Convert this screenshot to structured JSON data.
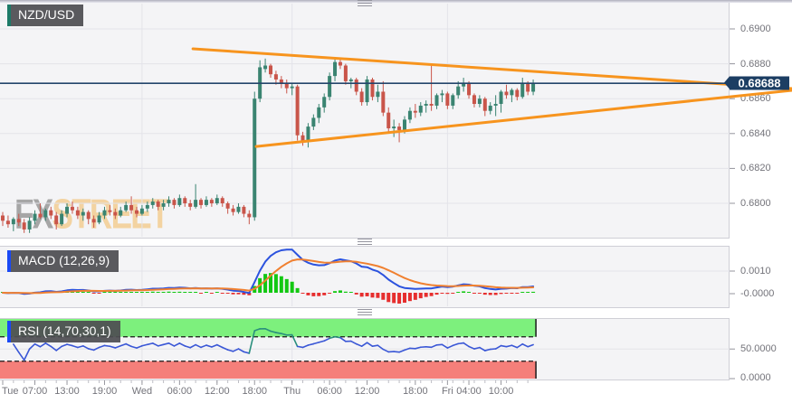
{
  "window_title": "NZD/USD price chart with MACD and RSI",
  "symbol_box": {
    "label": "NZD/USD",
    "accent_color": "#1d7a68"
  },
  "price_badge": {
    "label": "0.68688",
    "color": "#1c3e63"
  },
  "price_axis_labels": [
    "0.6900",
    "0.6880",
    "0.6860",
    "0.6840",
    "0.6820",
    "0.6800"
  ],
  "macd_box": {
    "label": "MACD (12,26,9)",
    "accent_color": "#1a49f5"
  },
  "macd_axis_labels": [
    "0.0010",
    "-0.0000"
  ],
  "rsi_box": {
    "label": "RSI (14,70,30,1)",
    "accent_color": "#1a49f5"
  },
  "rsi_axis_labels": [
    "50.0000",
    "0.0000"
  ],
  "watermark": {
    "part1": "FX",
    "part2": "STREET"
  },
  "colors": {
    "candle_up": "#3a8471",
    "candle_down": "#c9554a",
    "trendline": "#f7941e",
    "current_price_line": "#24456b",
    "macd_line": "#2b52de",
    "macd_signal": "#f08030",
    "hist_up": "#12c812",
    "hist_down": "#e62e2e",
    "rsi_line": "#3a57d6",
    "rsi_over": "#2a8f7d",
    "rsi_band_upper": "#7df07d",
    "rsi_band_lower": "#f57f7a",
    "threshold_line": "#1a1a1a",
    "gridline": "#e3e3e9"
  },
  "chart_data": {
    "type": "candlestick",
    "title": "NZD/USD",
    "timeframe_note": "intraday candles Tue through Fri",
    "price_base": 0.67,
    "pip": 0.0001,
    "y_ticks": [
      0.69,
      0.688,
      0.686,
      0.684,
      0.682,
      0.68
    ],
    "last_price": 0.68688,
    "ohlc_pips": [
      [
        93,
        95,
        87,
        90
      ],
      [
        90,
        93,
        86,
        88
      ],
      [
        88,
        92,
        84,
        91
      ],
      [
        91,
        94,
        87,
        89
      ],
      [
        89,
        91,
        83,
        85
      ],
      [
        85,
        92,
        83,
        90
      ],
      [
        90,
        96,
        88,
        94
      ],
      [
        94,
        100,
        91,
        92
      ],
      [
        92,
        97,
        90,
        96
      ],
      [
        96,
        98,
        91,
        93
      ],
      [
        93,
        95,
        85,
        88
      ],
      [
        88,
        96,
        87,
        94
      ],
      [
        94,
        100,
        92,
        98
      ],
      [
        98,
        101,
        94,
        96
      ],
      [
        96,
        98,
        91,
        93
      ],
      [
        93,
        97,
        90,
        95
      ],
      [
        95,
        96,
        88,
        91
      ],
      [
        91,
        93,
        86,
        89
      ],
      [
        89,
        95,
        88,
        93
      ],
      [
        93,
        98,
        91,
        96
      ],
      [
        96,
        99,
        93,
        95
      ],
      [
        95,
        97,
        91,
        93
      ],
      [
        93,
        98,
        92,
        96
      ],
      [
        96,
        101,
        95,
        99
      ],
      [
        99,
        104,
        94,
        96
      ],
      [
        96,
        98,
        92,
        94
      ],
      [
        94,
        99,
        93,
        97
      ],
      [
        97,
        101,
        95,
        99
      ],
      [
        99,
        103,
        97,
        101
      ],
      [
        101,
        102,
        96,
        98
      ],
      [
        98,
        102,
        96,
        100
      ],
      [
        100,
        104,
        98,
        102
      ],
      [
        102,
        103,
        97,
        99
      ],
      [
        99,
        105,
        98,
        103
      ],
      [
        103,
        104,
        98,
        100
      ],
      [
        100,
        102,
        96,
        98
      ],
      [
        98,
        111,
        97,
        102
      ],
      [
        102,
        103,
        97,
        99
      ],
      [
        99,
        104,
        98,
        102
      ],
      [
        102,
        103,
        98,
        100
      ],
      [
        100,
        105,
        99,
        103
      ],
      [
        103,
        104,
        98,
        100
      ],
      [
        100,
        101,
        94,
        97
      ],
      [
        97,
        99,
        93,
        95
      ],
      [
        95,
        100,
        94,
        98
      ],
      [
        98,
        99,
        92,
        94
      ],
      [
        94,
        96,
        88,
        92
      ],
      [
        92,
        164,
        90,
        160
      ],
      [
        160,
        182,
        158,
        178
      ],
      [
        177,
        183,
        175,
        179
      ],
      [
        179,
        180,
        172,
        174
      ],
      [
        174,
        176,
        168,
        171
      ],
      [
        171,
        173,
        166,
        169
      ],
      [
        169,
        171,
        163,
        166
      ],
      [
        166,
        169,
        162,
        167
      ],
      [
        167,
        168,
        136,
        139
      ],
      [
        139,
        141,
        133,
        136
      ],
      [
        136,
        146,
        132,
        144
      ],
      [
        144,
        151,
        142,
        149
      ],
      [
        149,
        157,
        146,
        155
      ],
      [
        155,
        163,
        152,
        161
      ],
      [
        161,
        175,
        159,
        173
      ],
      [
        173,
        183,
        170,
        181
      ],
      [
        181,
        183,
        177,
        179
      ],
      [
        179,
        180,
        168,
        170
      ],
      [
        170,
        172,
        166,
        171
      ],
      [
        171,
        172,
        162,
        164
      ],
      [
        164,
        166,
        156,
        158
      ],
      [
        158,
        173,
        156,
        171
      ],
      [
        171,
        172,
        159,
        161
      ],
      [
        161,
        168,
        158,
        164
      ],
      [
        164,
        170,
        150,
        152
      ],
      [
        152,
        155,
        140,
        143
      ],
      [
        143,
        148,
        138,
        144
      ],
      [
        144,
        146,
        135,
        142
      ],
      [
        142,
        150,
        140,
        148
      ],
      [
        148,
        155,
        146,
        153
      ],
      [
        153,
        157,
        149,
        152
      ],
      [
        152,
        158,
        150,
        156
      ],
      [
        156,
        159,
        152,
        157
      ],
      [
        157,
        180,
        153,
        156
      ],
      [
        156,
        163,
        154,
        162
      ],
      [
        162,
        165,
        158,
        163
      ],
      [
        163,
        164,
        154,
        156
      ],
      [
        156,
        163,
        154,
        162
      ],
      [
        162,
        170,
        160,
        167
      ],
      [
        167,
        172,
        164,
        169
      ],
      [
        169,
        170,
        160,
        162
      ],
      [
        162,
        163,
        155,
        157
      ],
      [
        157,
        162,
        155,
        160
      ],
      [
        160,
        161,
        150,
        153
      ],
      [
        153,
        158,
        151,
        156
      ],
      [
        156,
        162,
        150,
        157
      ],
      [
        157,
        165,
        152,
        164
      ],
      [
        164,
        168,
        160,
        162
      ],
      [
        162,
        166,
        158,
        165
      ],
      [
        165,
        166,
        159,
        161
      ],
      [
        161,
        172,
        160,
        169
      ],
      [
        169,
        170,
        162,
        164
      ],
      [
        164,
        171,
        162,
        168.8
      ]
    ],
    "x_labels": [
      {
        "label": "Tue",
        "i": 0
      },
      {
        "label": "07:00",
        "i": 6
      },
      {
        "label": "13:00",
        "i": 12
      },
      {
        "label": "19:00",
        "i": 19
      },
      {
        "label": "Wed",
        "i": 26
      },
      {
        "label": "06:00",
        "i": 33
      },
      {
        "label": "12:00",
        "i": 40
      },
      {
        "label": "18:00",
        "i": 47
      },
      {
        "label": "Thu",
        "i": 54
      },
      {
        "label": "06:00",
        "i": 61
      },
      {
        "label": "12:00",
        "i": 68
      },
      {
        "label": "18:00",
        "i": 77
      },
      {
        "label": "Fri",
        "i": 83
      },
      {
        "label": "04:00",
        "i": 87
      },
      {
        "label": "10:00",
        "i": 93
      }
    ],
    "day_gridline_indices": [
      26,
      54,
      83
    ],
    "trendlines": [
      {
        "name": "triangle-upper",
        "from": {
          "i": 35.5,
          "price": 0.68886
        },
        "to": {
          "i": 147.3,
          "price": 0.68658
        }
      },
      {
        "name": "triangle-lower",
        "from": {
          "i": 47.3,
          "price": 0.68326
        },
        "to": {
          "i": 147.3,
          "price": 0.68648
        }
      }
    ],
    "indicators": {
      "macd": {
        "fast": 12,
        "slow": 26,
        "signal": 9,
        "axis": [
          {
            "label": "0.0010",
            "value": 0.001
          },
          {
            "label": "-0.0000",
            "value": 0
          }
        ]
      },
      "rsi": {
        "period": 14,
        "upper_threshold": 70,
        "lower_threshold": 30,
        "smoothing": 1,
        "axis": [
          {
            "label": "50.0000",
            "value": 50
          },
          {
            "label": "0.0000",
            "value": 0
          }
        ]
      }
    }
  }
}
